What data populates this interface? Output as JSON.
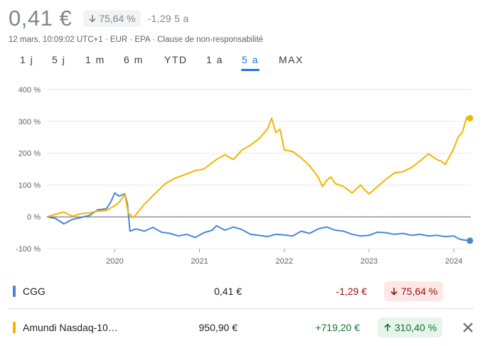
{
  "header": {
    "price": "0,41 €",
    "change_percent": "75,64 %",
    "change_period": "-1,29 5 a",
    "meta": "12 mars, 10:09:02 UTC+1 · EUR · EPA · Clause de non-responsabilité"
  },
  "tabs": [
    {
      "label": "1 j"
    },
    {
      "label": "5 j"
    },
    {
      "label": "1 m"
    },
    {
      "label": "6 m"
    },
    {
      "label": "YTD"
    },
    {
      "label": "1 a"
    },
    {
      "label": "5 a",
      "active": true
    },
    {
      "label": "MAX"
    }
  ],
  "chart_data": {
    "type": "line",
    "y_ticks": [
      "400 %",
      "300 %",
      "200 %",
      "100 %",
      "0 %",
      "-100 %"
    ],
    "x_ticks": [
      "2020",
      "2021",
      "2022",
      "2023",
      "2024"
    ],
    "ylim": [
      -100,
      400
    ],
    "xlim": [
      2019.2,
      2024.2
    ],
    "grid": true,
    "baseline": 0,
    "series": [
      {
        "name": "CGG",
        "color": "#4a86d8",
        "points": [
          [
            2019.2,
            0
          ],
          [
            2019.3,
            -5
          ],
          [
            2019.4,
            -22
          ],
          [
            2019.5,
            -8
          ],
          [
            2019.6,
            -2
          ],
          [
            2019.7,
            4
          ],
          [
            2019.8,
            22
          ],
          [
            2019.9,
            25
          ],
          [
            2019.95,
            45
          ],
          [
            2020.0,
            75
          ],
          [
            2020.05,
            65
          ],
          [
            2020.12,
            72
          ],
          [
            2020.15,
            40
          ],
          [
            2020.18,
            -45
          ],
          [
            2020.25,
            -38
          ],
          [
            2020.35,
            -45
          ],
          [
            2020.45,
            -33
          ],
          [
            2020.55,
            -48
          ],
          [
            2020.65,
            -52
          ],
          [
            2020.75,
            -60
          ],
          [
            2020.85,
            -55
          ],
          [
            2020.95,
            -65
          ],
          [
            2021.05,
            -50
          ],
          [
            2021.15,
            -42
          ],
          [
            2021.2,
            -28
          ],
          [
            2021.3,
            -42
          ],
          [
            2021.4,
            -32
          ],
          [
            2021.5,
            -40
          ],
          [
            2021.6,
            -55
          ],
          [
            2021.7,
            -58
          ],
          [
            2021.8,
            -62
          ],
          [
            2021.9,
            -55
          ],
          [
            2022.0,
            -57
          ],
          [
            2022.1,
            -60
          ],
          [
            2022.2,
            -45
          ],
          [
            2022.3,
            -52
          ],
          [
            2022.4,
            -38
          ],
          [
            2022.5,
            -32
          ],
          [
            2022.6,
            -42
          ],
          [
            2022.7,
            -45
          ],
          [
            2022.8,
            -55
          ],
          [
            2022.9,
            -60
          ],
          [
            2023.0,
            -58
          ],
          [
            2023.1,
            -48
          ],
          [
            2023.2,
            -50
          ],
          [
            2023.3,
            -55
          ],
          [
            2023.4,
            -52
          ],
          [
            2023.5,
            -58
          ],
          [
            2023.6,
            -55
          ],
          [
            2023.7,
            -60
          ],
          [
            2023.8,
            -58
          ],
          [
            2023.9,
            -62
          ],
          [
            2024.0,
            -60
          ],
          [
            2024.05,
            -68
          ],
          [
            2024.1,
            -72
          ],
          [
            2024.19,
            -75
          ]
        ]
      },
      {
        "name": "Amundi Nasdaq-10…",
        "color": "#f4b400",
        "points": [
          [
            2019.2,
            0
          ],
          [
            2019.3,
            8
          ],
          [
            2019.4,
            15
          ],
          [
            2019.5,
            2
          ],
          [
            2019.6,
            10
          ],
          [
            2019.7,
            12
          ],
          [
            2019.8,
            18
          ],
          [
            2019.9,
            20
          ],
          [
            2020.0,
            35
          ],
          [
            2020.05,
            45
          ],
          [
            2020.12,
            70
          ],
          [
            2020.16,
            12
          ],
          [
            2020.22,
            -3
          ],
          [
            2020.35,
            40
          ],
          [
            2020.5,
            80
          ],
          [
            2020.6,
            105
          ],
          [
            2020.7,
            120
          ],
          [
            2020.8,
            130
          ],
          [
            2020.95,
            145
          ],
          [
            2021.05,
            150
          ],
          [
            2021.15,
            170
          ],
          [
            2021.2,
            180
          ],
          [
            2021.3,
            195
          ],
          [
            2021.4,
            180
          ],
          [
            2021.5,
            210
          ],
          [
            2021.6,
            225
          ],
          [
            2021.7,
            245
          ],
          [
            2021.8,
            275
          ],
          [
            2021.85,
            310
          ],
          [
            2021.9,
            265
          ],
          [
            2021.95,
            275
          ],
          [
            2022.0,
            210
          ],
          [
            2022.1,
            205
          ],
          [
            2022.2,
            185
          ],
          [
            2022.3,
            160
          ],
          [
            2022.4,
            125
          ],
          [
            2022.45,
            95
          ],
          [
            2022.5,
            115
          ],
          [
            2022.55,
            125
          ],
          [
            2022.6,
            105
          ],
          [
            2022.7,
            95
          ],
          [
            2022.8,
            75
          ],
          [
            2022.9,
            100
          ],
          [
            2022.95,
            85
          ],
          [
            2023.0,
            72
          ],
          [
            2023.1,
            95
          ],
          [
            2023.2,
            118
          ],
          [
            2023.3,
            138
          ],
          [
            2023.4,
            142
          ],
          [
            2023.5,
            155
          ],
          [
            2023.6,
            175
          ],
          [
            2023.7,
            198
          ],
          [
            2023.8,
            180
          ],
          [
            2023.85,
            175
          ],
          [
            2023.9,
            165
          ],
          [
            2024.0,
            215
          ],
          [
            2024.05,
            250
          ],
          [
            2024.1,
            265
          ],
          [
            2024.15,
            312
          ],
          [
            2024.19,
            310
          ]
        ]
      }
    ]
  },
  "legend": [
    {
      "name": "CGG",
      "value": "0,41 €",
      "change": "-1,29 €",
      "percent": "75,64 %",
      "direction": "down",
      "color": "#4a86d8"
    },
    {
      "name": "Amundi Nasdaq-10…",
      "value": "950,90 €",
      "change": "+719,20 €",
      "percent": "310,40 %",
      "direction": "up",
      "color": "#f4b400"
    }
  ],
  "icons": {
    "close": "close-icon",
    "down_arrow": "arrow-down-icon",
    "up_arrow": "arrow-up-icon"
  }
}
